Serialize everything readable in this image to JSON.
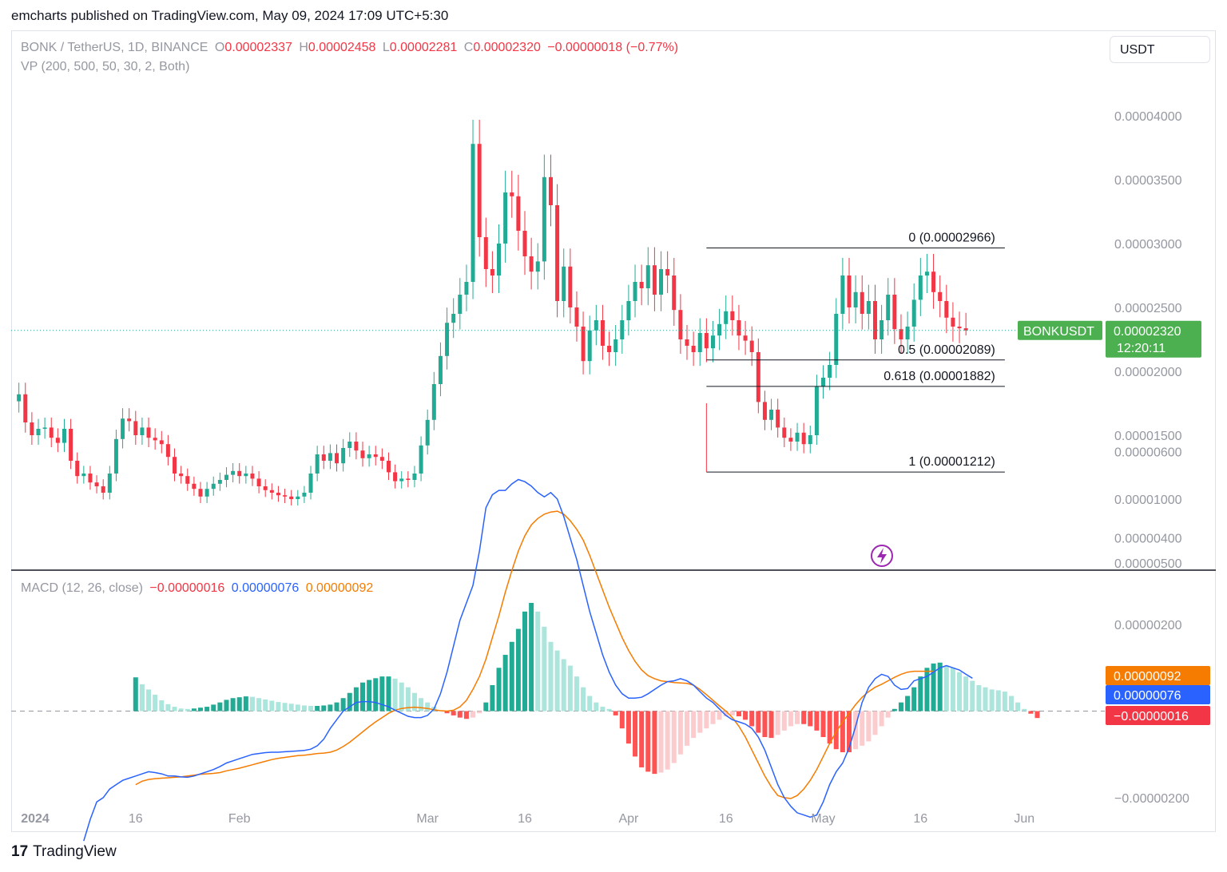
{
  "header": {
    "publisher_line": "emcharts published on TradingView.com, May 09, 2024 17:09 UTC+5:30"
  },
  "currency_button": "USDT",
  "branding": {
    "logo_mark": "17",
    "logo_text": "TradingView"
  },
  "colors": {
    "up": "#22ab94",
    "down": "#f23645",
    "macd_line": "#2962ff",
    "signal_line": "#f57c00",
    "hist_up_strong": "#22ab94",
    "hist_up_weak": "#ace5dc",
    "hist_down_strong": "#ff5252",
    "hist_down_weak": "#fccbcd"
  },
  "main_legend": {
    "symbol": "BONK / TetherUS, 1D, BINANCE",
    "o_label": "O",
    "o_value": "0.00002337",
    "h_label": "H",
    "h_value": "0.00002458",
    "l_label": "L",
    "l_value": "0.00002281",
    "c_label": "C",
    "c_value": "0.00002320",
    "change": "−0.00000018 (−0.77%)",
    "vp": "VP (200, 500, 50, 30, 2, Both)"
  },
  "macd_legend": {
    "label": "MACD (12, 26, close)",
    "histogram": "−0.00000016",
    "macd": "0.00000076",
    "signal": "0.00000092"
  },
  "chart_data": [
    {
      "type": "candlestick",
      "title": "BONK / TetherUS, 1D, BINANCE",
      "ylim": [
        5e-06,
        4.5e-05
      ],
      "y_ticks": [
        "0.00004000",
        "0.00003500",
        "0.00003000",
        "0.00002500",
        "0.00002000",
        "0.00001500",
        "0.00001000",
        "0.00000500"
      ],
      "y_tick_values": [
        4e-05,
        3.5e-05,
        3e-05,
        2.5e-05,
        2e-05,
        1.5e-05,
        1e-05,
        5e-06
      ],
      "x_ticks": [
        "2024",
        "16",
        "Feb",
        "Mar",
        "16",
        "Apr",
        "16",
        "May",
        "16",
        "Jun"
      ],
      "x_tick_dates": [
        "2024-01-01",
        "2024-01-16",
        "2024-02-01",
        "2024-03-01",
        "2024-03-16",
        "2024-04-01",
        "2024-04-16",
        "2024-05-01",
        "2024-05-16",
        "2024-06-01"
      ],
      "first_date": "2023-12-29",
      "last_date": "2024-05-09",
      "close": [
        1.82e-05,
        1.6e-05,
        1.5e-05,
        1.55e-05,
        1.56e-05,
        1.48e-05,
        1.44e-05,
        1.55e-05,
        1.3e-05,
        1.18e-05,
        1.2e-05,
        1.13e-05,
        1.1e-05,
        1.05e-05,
        1.2e-05,
        1.47e-05,
        1.63e-05,
        1.61e-05,
        1.5e-05,
        1.56e-05,
        1.48e-05,
        1.46e-05,
        1.43e-05,
        1.33e-05,
        1.2e-05,
        1.18e-05,
        1.12e-05,
        1.08e-05,
        1.02e-05,
        1.08e-05,
        1.12e-05,
        1.15e-05,
        1.19e-05,
        1.22e-05,
        1.18e-05,
        1.2e-05,
        1.16e-05,
        1.1e-05,
        1.07e-05,
        1.05e-05,
        1.03e-05,
        1.02e-05,
        1e-05,
        1.02e-05,
        1.05e-05,
        1.2e-05,
        1.35e-05,
        1.3e-05,
        1.36e-05,
        1.28e-05,
        1.4e-05,
        1.45e-05,
        1.38e-05,
        1.32e-05,
        1.35e-05,
        1.33e-05,
        1.3e-05,
        1.21e-05,
        1.14e-05,
        1.16e-05,
        1.15e-05,
        1.2e-05,
        1.42e-05,
        1.62e-05,
        1.9e-05,
        2.12e-05,
        2.38e-05,
        2.45e-05,
        2.6e-05,
        2.7e-05,
        3.78e-05,
        3.05e-05,
        2.8e-05,
        2.75e-05,
        3e-05,
        3.4e-05,
        3.37e-05,
        3.1e-05,
        2.9e-05,
        2.78e-05,
        2.86e-05,
        3.52e-05,
        3.3e-05,
        2.55e-05,
        2.82e-05,
        2.5e-05,
        2.35e-05,
        2.08e-05,
        2.32e-05,
        2.4e-05,
        2.2e-05,
        2.15e-05,
        2.25e-05,
        2.4e-05,
        2.55e-05,
        2.7e-05,
        2.65e-05,
        2.83e-05,
        2.6e-05,
        2.8e-05,
        2.75e-05,
        2.48e-05,
        2.25e-05,
        2.2e-05,
        2.15e-05,
        2.3e-05,
        2.18e-05,
        2.28e-05,
        2.37e-05,
        2.47e-05,
        2.4e-05,
        2.28e-05,
        2.24e-05,
        2.15e-05,
        1.76e-05,
        1.62e-05,
        1.7e-05,
        1.56e-05,
        1.48e-05,
        1.45e-05,
        1.52e-05,
        1.43e-05,
        1.5e-05,
        1.88e-05,
        1.95e-05,
        2.05e-05,
        2.45e-05,
        2.75e-05,
        2.5e-05,
        2.62e-05,
        2.45e-05,
        2.55e-05,
        2.25e-05,
        2.4e-05,
        2.6e-05,
        2.33e-05,
        2.25e-05,
        2.35e-05,
        2.56e-05,
        2.75e-05,
        2.78e-05,
        2.62e-05,
        2.55e-05,
        2.42e-05,
        2.35e-05,
        2.337e-05,
        2.32e-05
      ],
      "candle_direction_note": "Each candle opens at the previous close; the last candle shows O 0.00002337, H 0.00002458, L 0.00002281, C 0.00002320.",
      "last_price_label": {
        "symbol": "BONKUSDT",
        "price": "0.00002320",
        "countdown": "12:20:11",
        "value": 2.32e-05
      },
      "annotations": [
        {
          "label": "0 (0.00002966)",
          "value": 2.966e-05
        },
        {
          "label": "0.5 (0.00002089)",
          "value": 2.089e-05
        },
        {
          "label": "0.618 (0.00001882)",
          "value": 1.882e-05
        },
        {
          "label": "1 (0.00001212)",
          "value": 1.212e-05
        }
      ],
      "fib_from_date": "2024-04-13",
      "fib_to_date": "2024-05-29"
    },
    {
      "type": "macd",
      "title": "MACD (12, 26, close)",
      "ylim": [
        -3.5e-06,
        6e-06
      ],
      "y_ticks": [
        "0.00000600",
        "0.00000400",
        "0.00000200",
        "−0.00000200"
      ],
      "y_tick_values": [
        6e-06,
        4e-06,
        2e-06,
        -2e-06
      ],
      "zero_line": true,
      "macd_line_start_date": "2024-01-08",
      "macd_line": [
        -3e-06,
        -2.5e-06,
        -2.1e-06,
        -2e-06,
        -1.8e-06,
        -1.7e-06,
        -1.6e-06,
        -1.55e-06,
        -1.5e-06,
        -1.45e-06,
        -1.4e-06,
        -1.42e-06,
        -1.45e-06,
        -1.5e-06,
        -1.5e-06,
        -1.52e-06,
        -1.53e-06,
        -1.5e-06,
        -1.45e-06,
        -1.4e-06,
        -1.35e-06,
        -1.28e-06,
        -1.2e-06,
        -1.15e-06,
        -1.1e-06,
        -1.05e-06,
        -1e-06,
        -9.8e-07,
        -9.6e-07,
        -9.5e-07,
        -9.5e-07,
        -9.4e-07,
        -9.3e-07,
        -9.2e-07,
        -9.1e-07,
        -8.8e-07,
        -8e-07,
        -6.5e-07,
        -4e-07,
        -2e-07,
        0.0,
        1e-07,
        2e-07,
        2.2e-07,
        2.2e-07,
        2e-07,
        1.5e-07,
        1e-07,
        2e-08,
        -5e-08,
        -1.2e-07,
        -1.5e-07,
        -1.5e-07,
        -1e-07,
        5e-08,
        4e-07,
        9e-07,
        1.5e-06,
        2.1e-06,
        2.5e-06,
        2.9e-06,
        3.7e-06,
        4.7e-06,
        5e-06,
        5.1e-06,
        5.1e-06,
        5.25e-06,
        5.35e-06,
        5.3e-06,
        5.2e-06,
        5.05e-06,
        4.95e-06,
        5.05e-06,
        4.9e-06,
        4.5e-06,
        4e-06,
        3.5e-06,
        2.9e-06,
        2.3e-06,
        1.8e-06,
        1.3e-06,
        9e-07,
        6e-07,
        4e-07,
        3e-07,
        3e-07,
        3.2e-07,
        4e-07,
        5e-07,
        6e-07,
        6.8e-07,
        7e-07,
        7.5e-07,
        7e-07,
        6e-07,
        4.5e-07,
        3e-07,
        2e-07,
        5e-08,
        -1e-07,
        -2e-07,
        -2.5e-07,
        -3e-07,
        -4e-07,
        -6e-07,
        -9e-07,
        -1.3e-06,
        -1.7e-06,
        -2e-06,
        -2.2e-06,
        -2.35e-06,
        -2.4e-06,
        -2.45e-06,
        -2.4e-06,
        -2.1e-06,
        -1.7e-06,
        -1.4e-06,
        -1.2e-06,
        -8.5e-07,
        -3.5e-07,
        2e-07,
        5.5e-07,
        7.5e-07,
        8.5e-07,
        8e-07,
        6e-07,
        5e-07,
        5.2e-07,
        7e-07,
        7.5e-07,
        8e-07,
        9e-07,
        1e-06,
        1.05e-06,
        1e-06,
        9.5e-07,
        8.5e-07,
        7.6e-07
      ],
      "signal_line_start_date": "2024-01-16",
      "signal_line": [
        -1.7e-06,
        -1.62e-06,
        -1.58e-06,
        -1.56e-06,
        -1.55e-06,
        -1.54e-06,
        -1.53e-06,
        -1.52e-06,
        -1.5e-06,
        -1.48e-06,
        -1.46e-06,
        -1.45e-06,
        -1.44e-06,
        -1.42e-06,
        -1.38e-06,
        -1.35e-06,
        -1.32e-06,
        -1.28e-06,
        -1.24e-06,
        -1.2e-06,
        -1.16e-06,
        -1.12e-06,
        -1.09e-06,
        -1.07e-06,
        -1.05e-06,
        -1.03e-06,
        -1.02e-06,
        -1e-06,
        -9.8e-07,
        -9.7e-07,
        -9.5e-07,
        -9e-07,
        -8.2e-07,
        -7.2e-07,
        -6e-07,
        -4.8e-07,
        -3.6e-07,
        -2.5e-07,
        -1.5e-07,
        -5e-08,
        2e-08,
        6e-08,
        8e-08,
        9e-08,
        8e-08,
        6e-08,
        3e-08,
        1e-08,
        0.0,
        2e-08,
        1e-07,
        2.5e-07,
        5e-07,
        8e-07,
        1.2e-06,
        1.7e-06,
        2.2e-06,
        2.75e-06,
        3.25e-06,
        3.7e-06,
        4.05e-06,
        4.3e-06,
        4.45e-06,
        4.55e-06,
        4.6e-06,
        4.62e-06,
        4.55e-06,
        4.4e-06,
        4.2e-06,
        3.95e-06,
        3.6e-06,
        3.2e-06,
        2.8e-06,
        2.4e-06,
        2.05e-06,
        1.7e-06,
        1.4e-06,
        1.15e-06,
        9.5e-07,
        8.2e-07,
        7.5e-07,
        7e-07,
        6.8e-07,
        6.6e-07,
        6.5e-07,
        6.4e-07,
        6e-07,
        5e-07,
        3.8e-07,
        2.5e-07,
        1.2e-07,
        0.0,
        -1.5e-07,
        -3.5e-07,
        -6e-07,
        -9e-07,
        -1.2e-06,
        -1.5e-06,
        -1.75e-06,
        -1.95e-06,
        -2e-06,
        -2.02e-06,
        -1.95e-06,
        -1.8e-06,
        -1.6e-06,
        -1.35e-06,
        -1.05e-06,
        -7.5e-07,
        -4.8e-07,
        -2.5e-07,
        -5e-08,
        1.5e-07,
        3.2e-07,
        4.5e-07,
        5.5e-07,
        6.2e-07,
        7e-07,
        7.8e-07,
        8.5e-07,
        9e-07,
        9.2e-07,
        9.2e-07,
        9.2e-07,
        9.2e-07
      ],
      "histogram_start_date": "2024-01-16",
      "histogram": [
        7.8e-07,
        6.2e-07,
        5e-07,
        3.8e-07,
        2.5e-07,
        1.6e-07,
        1e-07,
        6e-08,
        5e-08,
        6e-08,
        8e-08,
        1e-07,
        1.5e-07,
        2e-07,
        2.6e-07,
        3e-07,
        3.2e-07,
        3.4e-07,
        3.3e-07,
        3e-07,
        2.7e-07,
        2.4e-07,
        2.1e-07,
        1.9e-07,
        1.7e-07,
        1.5e-07,
        1.3e-07,
        1.2e-07,
        1.2e-07,
        1.3e-07,
        1.5e-07,
        2e-07,
        3e-07,
        4.2e-07,
        5.5e-07,
        6.6e-07,
        7.2e-07,
        7.6e-07,
        8e-07,
        8e-07,
        7.5e-07,
        6.6e-07,
        5.5e-07,
        4.2e-07,
        3e-07,
        2e-07,
        1e-07,
        2e-08,
        -5e-08,
        -1e-07,
        -1.5e-07,
        -1.8e-07,
        -1.5e-07,
        -5e-08,
        2e-07,
        6e-07,
        1e-06,
        1.3e-06,
        1.6e-06,
        1.9e-06,
        2.3e-06,
        2.5e-06,
        2.3e-06,
        1.95e-06,
        1.6e-06,
        1.4e-06,
        1.2e-06,
        1.05e-06,
        8e-07,
        5.5e-07,
        3.5e-07,
        2e-07,
        1e-07,
        5e-08,
        -1e-07,
        -4e-07,
        -7.5e-07,
        -1.05e-06,
        -1.3e-06,
        -1.4e-06,
        -1.45e-06,
        -1.42e-06,
        -1.35e-06,
        -1.2e-06,
        -1e-06,
        -8e-07,
        -6.2e-07,
        -5e-07,
        -4e-07,
        -3e-07,
        -2e-07,
        -1.2e-07,
        -1e-07,
        -1.2e-07,
        -2e-07,
        -3.5e-07,
        -5e-07,
        -6e-07,
        -6.2e-07,
        -5.5e-07,
        -4.5e-07,
        -3.5e-07,
        -3e-07,
        -3e-07,
        -3.5e-07,
        -4.5e-07,
        -6e-07,
        -7.5e-07,
        -8.8e-07,
        -9.5e-07,
        -9.5e-07,
        -8.8e-07,
        -8e-07,
        -7e-07,
        -5.5e-07,
        -3.5e-07,
        -1.5e-07,
        5e-08,
        2e-07,
        3.5e-07,
        5.5e-07,
        8e-07,
        1e-06,
        1.1e-06,
        1.12e-06,
        1.05e-06,
        1e-06,
        9e-07,
        8e-07,
        7e-07,
        6e-07,
        5.5e-07,
        5e-07,
        4.8e-07,
        4.5e-07,
        3.5e-07,
        2e-07,
        5e-08,
        -6e-08,
        -1.6e-07
      ],
      "value_labels": [
        {
          "text": "0.00000092",
          "value": 9.2e-07,
          "color": "#f57c00"
        },
        {
          "text": "0.00000076",
          "value": 7.6e-07,
          "color": "#2962ff"
        },
        {
          "text": "−0.00000016",
          "value": -1.6e-07,
          "color": "#f23645"
        }
      ]
    }
  ]
}
